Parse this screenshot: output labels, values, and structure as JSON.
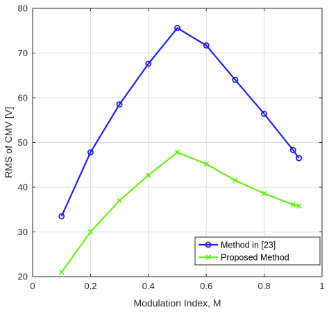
{
  "chart_data": {
    "type": "line",
    "xlabel": "Modulation Index, M",
    "ylabel": "RMS of CMV [V]",
    "xlim": [
      0,
      1
    ],
    "ylim": [
      20,
      80
    ],
    "xticks": [
      0,
      0.2,
      0.4,
      0.6,
      0.8,
      1
    ],
    "xtick_labels": [
      "0",
      "0.2",
      "0.4",
      "0.6",
      "0.8",
      "1"
    ],
    "yticks": [
      20,
      30,
      40,
      50,
      60,
      70,
      80
    ],
    "ytick_labels": [
      "20",
      "30",
      "40",
      "50",
      "60",
      "70",
      "80"
    ],
    "grid": true,
    "legend_position": "bottom-right",
    "series": [
      {
        "name": "Method in [23]",
        "color": "#1f1fdc",
        "marker": "circle",
        "x": [
          0.1,
          0.2,
          0.3,
          0.4,
          0.5,
          0.6,
          0.7,
          0.8,
          0.9,
          0.92
        ],
        "values": [
          33.5,
          47.8,
          58.5,
          67.6,
          75.6,
          71.7,
          64.0,
          56.4,
          48.3,
          46.5
        ]
      },
      {
        "name": "Proposed Method",
        "color": "#66ee1a",
        "marker": "x",
        "x": [
          0.1,
          0.2,
          0.3,
          0.4,
          0.5,
          0.6,
          0.7,
          0.8,
          0.9,
          0.92
        ],
        "values": [
          21.0,
          30.0,
          37.0,
          42.7,
          47.8,
          45.2,
          41.5,
          38.6,
          36.1,
          35.8
        ]
      }
    ]
  }
}
